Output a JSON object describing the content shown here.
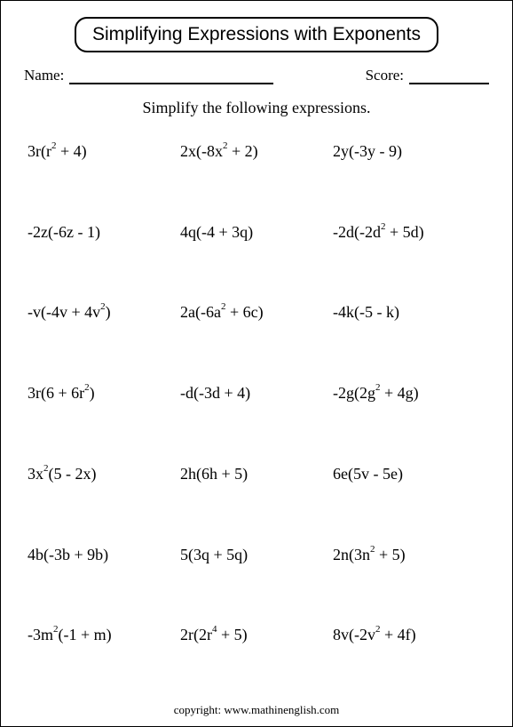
{
  "worksheet": {
    "title": "Simplifying Expressions with Exponents",
    "name_label": "Name:",
    "score_label": "Score:",
    "instruction": "Simplify the following expressions.",
    "copyright": "copyright:   www.mathinenglish.com",
    "title_fontsize": 21,
    "body_fontsize": 18,
    "copyright_fontsize": 13,
    "text_color": "#000000",
    "background_color": "#ffffff",
    "grid": {
      "rows": 7,
      "cols": 3
    },
    "problems": [
      {
        "html": "3r(r<sup>2</sup> + 4)"
      },
      {
        "html": "2x(-8x<sup>2</sup> + 2)"
      },
      {
        "html": "2y(-3y - 9)"
      },
      {
        "html": "-2z(-6z - 1)"
      },
      {
        "html": "4q(-4 + 3q)"
      },
      {
        "html": "-2d(-2d<sup>2</sup> + 5d)"
      },
      {
        "html": "-v(-4v + 4v<sup>2</sup>)"
      },
      {
        "html": "2a(-6a<sup>2</sup> + 6c)"
      },
      {
        "html": "-4k(-5 - k)"
      },
      {
        "html": "3r(6 + 6r<sup>2</sup>)"
      },
      {
        "html": "-d(-3d + 4)"
      },
      {
        "html": "-2g(2g<sup>2</sup> + 4g)"
      },
      {
        "html": "3x<sup>2</sup>(5 - 2x)"
      },
      {
        "html": "2h(6h + 5)"
      },
      {
        "html": "6e(5v - 5e)"
      },
      {
        "html": "4b(-3b + 9b)"
      },
      {
        "html": "5(3q + 5q)"
      },
      {
        "html": "2n(3n<sup>2</sup> + 5)"
      },
      {
        "html": "-3m<sup>2</sup>(-1 + m)"
      },
      {
        "html": "2r(2r<sup>4</sup> + 5)"
      },
      {
        "html": "8v(-2v<sup>2</sup> + 4f)"
      }
    ]
  }
}
